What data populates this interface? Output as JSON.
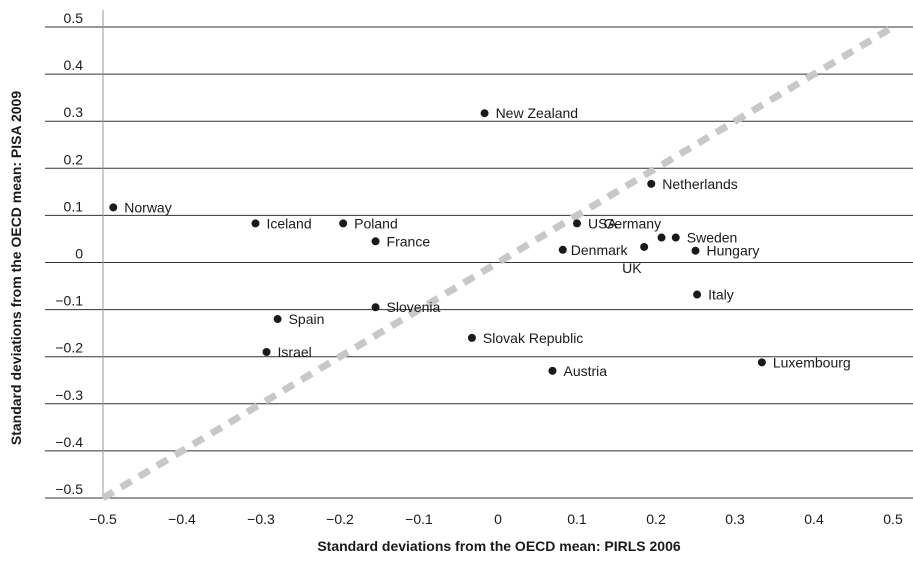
{
  "chart_data": {
    "type": "scatter",
    "xlabel": "Standard deviations from the OECD mean: PIRLS 2006",
    "ylabel": "Standard deviations from the OECD mean: PISA 2009",
    "xlim": [
      -0.5,
      0.5
    ],
    "ylim": [
      -0.5,
      0.5
    ],
    "xticks": [
      -0.5,
      -0.4,
      -0.3,
      -0.2,
      -0.1,
      0,
      0.1,
      0.2,
      0.3,
      0.4,
      0.5
    ],
    "yticks": [
      0.5,
      0.4,
      0.3,
      0.2,
      0.1,
      0,
      -0.1,
      -0.2,
      -0.3,
      -0.4,
      -0.5
    ],
    "xtick_labels": [
      "−0.5",
      "−0.4",
      "−0.3",
      "−0.2",
      "−0.1",
      "0",
      "0.1",
      "0.2",
      "0.3",
      "0.4",
      "0.5"
    ],
    "ytick_labels": [
      "0.5",
      "0.4",
      "0.3",
      "0.2",
      "0.1",
      "0",
      "−0.1",
      "−0.2",
      "−0.3",
      "−0.4",
      "−0.5"
    ],
    "grid": "horizontal",
    "reference_line": {
      "from": [
        -0.5,
        -0.5
      ],
      "to": [
        0.5,
        0.5
      ],
      "style": "dashed",
      "color": "#c8c8c8"
    },
    "colors": {
      "points": "#1a1a1a",
      "grid": "#333333",
      "reference_line": "#c8c8c8"
    },
    "points": [
      {
        "label": "Norway",
        "x": -0.487,
        "y": 0.117
      },
      {
        "label": "Iceland",
        "x": -0.307,
        "y": 0.083
      },
      {
        "label": "Poland",
        "x": -0.196,
        "y": 0.083
      },
      {
        "label": "France",
        "x": -0.155,
        "y": 0.045
      },
      {
        "label": "New Zealand",
        "x": -0.017,
        "y": 0.317
      },
      {
        "label": "Netherlands",
        "x": 0.194,
        "y": 0.167
      },
      {
        "label": "USA",
        "x": 0.1,
        "y": 0.083
      },
      {
        "label": "Germany",
        "x": 0.207,
        "y": 0.053
      },
      {
        "label": "Sweden",
        "x": 0.225,
        "y": 0.053
      },
      {
        "label": "Denmark",
        "x": 0.082,
        "y": 0.027
      },
      {
        "label": "UK",
        "x": 0.185,
        "y": 0.033
      },
      {
        "label": "Hungary",
        "x": 0.25,
        "y": 0.025
      },
      {
        "label": "Italy",
        "x": 0.252,
        "y": -0.068
      },
      {
        "label": "Slovenia",
        "x": -0.155,
        "y": -0.095
      },
      {
        "label": "Spain",
        "x": -0.279,
        "y": -0.12
      },
      {
        "label": "Israel",
        "x": -0.293,
        "y": -0.19
      },
      {
        "label": "Slovak Republic",
        "x": -0.033,
        "y": -0.16
      },
      {
        "label": "Austria",
        "x": 0.069,
        "y": -0.23
      },
      {
        "label": "Luxembourg",
        "x": 0.334,
        "y": -0.212
      }
    ]
  }
}
